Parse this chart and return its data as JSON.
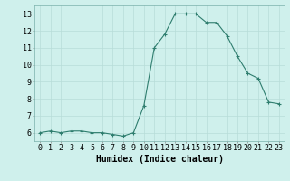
{
  "x": [
    0,
    1,
    2,
    3,
    4,
    5,
    6,
    7,
    8,
    9,
    10,
    11,
    12,
    13,
    14,
    15,
    16,
    17,
    18,
    19,
    20,
    21,
    22,
    23
  ],
  "y": [
    6.0,
    6.1,
    6.0,
    6.1,
    6.1,
    6.0,
    6.0,
    5.9,
    5.8,
    6.0,
    7.6,
    11.0,
    11.8,
    13.0,
    13.0,
    13.0,
    12.5,
    12.5,
    11.7,
    10.5,
    9.5,
    9.2,
    7.8,
    7.7
  ],
  "line_color": "#2e7d6e",
  "marker": "+",
  "marker_color": "#2e7d6e",
  "bg_color": "#cff0ec",
  "grid_color": "#b8ddd8",
  "xlabel": "Humidex (Indice chaleur)",
  "xlim": [
    -0.5,
    23.5
  ],
  "ylim": [
    5.5,
    13.5
  ],
  "yticks": [
    6,
    7,
    8,
    9,
    10,
    11,
    12,
    13
  ],
  "xticks": [
    0,
    1,
    2,
    3,
    4,
    5,
    6,
    7,
    8,
    9,
    10,
    11,
    12,
    13,
    14,
    15,
    16,
    17,
    18,
    19,
    20,
    21,
    22,
    23
  ],
  "tick_fontsize": 6,
  "xlabel_fontsize": 7,
  "line_width": 0.8,
  "marker_size": 3.5
}
